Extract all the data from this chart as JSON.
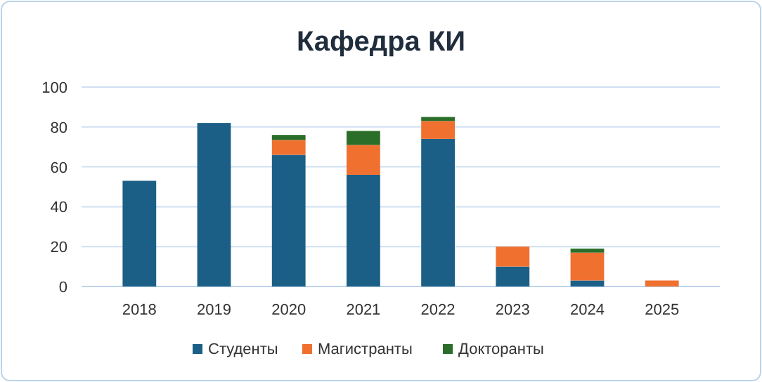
{
  "chart_data": {
    "type": "bar",
    "title": "Кафедра  КИ",
    "stacked": true,
    "categories": [
      "2018",
      "2019",
      "2020",
      "2021",
      "2022",
      "2023",
      "2024",
      "2025"
    ],
    "series": [
      {
        "name": "Студенты",
        "color": "#1b5f87",
        "values": [
          53,
          82,
          66,
          56,
          74,
          10,
          3,
          0
        ]
      },
      {
        "name": "Магистранты",
        "color": "#f07030",
        "values": [
          0,
          0,
          7.5,
          15,
          9,
          10,
          14,
          3
        ]
      },
      {
        "name": "Докторанты",
        "color": "#2a6e2a",
        "values": [
          0,
          0,
          2.5,
          7,
          2,
          0,
          2,
          0
        ]
      }
    ],
    "ylim": [
      0,
      100
    ],
    "yticks": [
      0,
      20,
      40,
      60,
      80,
      100
    ],
    "grid": "y",
    "legend": "bottom"
  }
}
